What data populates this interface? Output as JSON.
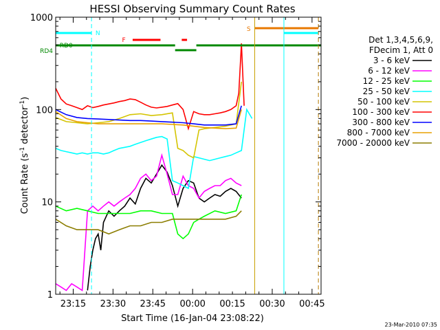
{
  "chart_data": {
    "type": "line",
    "title": "HESSI Observing Summary Count Rates",
    "xlabel": "Start Time (16-Jan-04 23:08:22)",
    "ylabel": "Count Rate (s⁻¹ detector⁻¹)",
    "y_scale": "log",
    "ylim": [
      1,
      1000
    ],
    "xlim_minutes_from_start": [
      0,
      100
    ],
    "grid": false,
    "x_ticks": [
      {
        "label": "23:15",
        "minute": 6.6
      },
      {
        "label": "23:30",
        "minute": 21.6
      },
      {
        "label": "23:45",
        "minute": 36.6
      },
      {
        "label": "00:00",
        "minute": 51.6
      },
      {
        "label": "00:15",
        "minute": 66.6
      },
      {
        "label": "00:30",
        "minute": 81.6
      },
      {
        "label": "00:45",
        "minute": 96.6
      }
    ],
    "y_ticks": [
      {
        "label": "1",
        "value": 1
      },
      {
        "label": "10",
        "value": 10
      },
      {
        "label": "100",
        "value": 100
      },
      {
        "label": "1000",
        "value": 1000
      }
    ],
    "legend_header": [
      "Det 1,3,4,5,6,9,",
      "FDecim 1, Att 0"
    ],
    "legend_placement": "right",
    "timestamp": "23-Mar-2010 07:35",
    "flags": {
      "N_label": "N",
      "F_label": "F",
      "S_label": "S",
      "RD0_label": "RD0",
      "RD4_label": "RD4"
    },
    "series": [
      {
        "name": "3 - 6 keV",
        "color": "#000000",
        "x": [
          12,
          13,
          14,
          15,
          16,
          17,
          18,
          20,
          22,
          24,
          26,
          28,
          30,
          32,
          34,
          36,
          38,
          40,
          42,
          44,
          46,
          48,
          50,
          52,
          54,
          56,
          58,
          60,
          62,
          64,
          66,
          68,
          70
        ],
        "y": [
          1.1,
          2,
          3,
          4,
          4.5,
          3,
          6,
          8,
          7,
          8,
          9,
          11,
          9.5,
          14,
          18,
          16,
          20,
          25,
          21,
          15,
          9,
          14,
          17,
          16,
          11,
          10,
          11,
          12,
          11.5,
          13,
          14,
          13,
          11
        ]
      },
      {
        "name": "6 - 12 keV",
        "color": "#ff00ff",
        "x": [
          0,
          2,
          4,
          6,
          8,
          10,
          12,
          14,
          16,
          18,
          20,
          22,
          24,
          26,
          28,
          30,
          32,
          34,
          36,
          38,
          40,
          42,
          44,
          46,
          48,
          50,
          52,
          54,
          56,
          58,
          60,
          62,
          64,
          66,
          68,
          70
        ],
        "y": [
          1.3,
          1.2,
          1.1,
          1.3,
          1.2,
          1.1,
          8,
          9,
          8,
          9,
          10,
          9,
          10,
          11,
          12,
          14,
          18,
          20,
          17,
          19,
          32,
          20,
          12,
          12,
          19,
          15,
          14,
          11,
          13,
          14,
          15,
          15,
          17,
          18,
          16,
          15
        ]
      },
      {
        "name": "12 - 25 keV",
        "color": "#00ff00",
        "x": [
          0,
          4,
          8,
          12,
          16,
          20,
          24,
          28,
          32,
          36,
          40,
          44,
          46,
          48,
          50,
          52,
          54,
          56,
          60,
          64,
          68,
          70
        ],
        "y": [
          9,
          8,
          8.5,
          8,
          7.5,
          7.5,
          7.5,
          7.5,
          8,
          8,
          7.5,
          7.5,
          4.5,
          4,
          4.5,
          6,
          6.5,
          7,
          8,
          7.5,
          8,
          12
        ]
      },
      {
        "name": "25 - 50 keV",
        "color": "#00ffff",
        "x": [
          0,
          2,
          4,
          6,
          8,
          10,
          12,
          14,
          16,
          18,
          20,
          22,
          24,
          26,
          28,
          30,
          32,
          34,
          36,
          38,
          40,
          42,
          44,
          46,
          48,
          50,
          52,
          54,
          56,
          58,
          60,
          62,
          64,
          66,
          68,
          70,
          72,
          74
        ],
        "y": [
          38,
          36,
          35,
          34,
          33,
          34,
          33,
          34,
          34,
          33,
          34,
          36,
          38,
          39,
          40,
          42,
          44,
          46,
          48,
          50,
          51,
          48,
          17,
          16,
          15,
          14,
          31,
          30,
          29,
          28,
          29,
          30,
          31,
          32,
          34,
          36,
          100,
          80
        ]
      },
      {
        "name": "50 - 100 keV",
        "color": "#d4c400",
        "x": [
          0,
          4,
          8,
          12,
          16,
          20,
          24,
          28,
          32,
          36,
          40,
          44,
          46,
          48,
          50,
          52,
          54,
          56,
          60,
          64,
          68,
          70
        ],
        "y": [
          82,
          74,
          72,
          70,
          72,
          74,
          80,
          88,
          90,
          86,
          88,
          92,
          38,
          36,
          32,
          30,
          60,
          62,
          64,
          66,
          70,
          200
        ]
      },
      {
        "name": "100 - 300 keV",
        "color": "#ff0000",
        "x": [
          0,
          2,
          4,
          6,
          8,
          10,
          12,
          14,
          16,
          18,
          20,
          22,
          24,
          26,
          28,
          30,
          32,
          34,
          36,
          38,
          40,
          42,
          44,
          46,
          48,
          50,
          52,
          54,
          56,
          58,
          60,
          62,
          64,
          66,
          68,
          69,
          70,
          71
        ],
        "y": [
          170,
          130,
          115,
          110,
          105,
          100,
          110,
          105,
          108,
          112,
          115,
          118,
          122,
          125,
          130,
          128,
          120,
          112,
          106,
          104,
          106,
          108,
          112,
          116,
          100,
          62,
          95,
          90,
          88,
          88,
          90,
          92,
          95,
          100,
          110,
          150,
          520,
          110
        ]
      },
      {
        "name": "300 - 800 keV",
        "color": "#0000ff",
        "x": [
          0,
          4,
          8,
          12,
          16,
          20,
          24,
          28,
          32,
          36,
          40,
          44,
          48,
          52,
          56,
          60,
          64,
          68,
          70
        ],
        "y": [
          100,
          88,
          82,
          80,
          79,
          78,
          77,
          76,
          76,
          75,
          74,
          73,
          72,
          70,
          68,
          68,
          68,
          70,
          110
        ]
      },
      {
        "name": "800 - 7000 keV",
        "color": "#e8a000",
        "x": [
          0,
          4,
          8,
          12,
          16,
          20,
          24,
          28,
          32,
          36,
          40,
          44,
          48,
          52,
          56,
          60,
          64,
          68,
          70
        ],
        "y": [
          95,
          80,
          74,
          72,
          70,
          70,
          70,
          70,
          70,
          70,
          70,
          69,
          68,
          66,
          64,
          63,
          62,
          63,
          100
        ]
      },
      {
        "name": "7000 - 20000 keV",
        "color": "#8b7d00",
        "x": [
          0,
          4,
          8,
          12,
          16,
          20,
          24,
          28,
          32,
          36,
          40,
          44,
          48,
          52,
          56,
          60,
          64,
          68,
          70
        ],
        "y": [
          6.5,
          5.5,
          5,
          5,
          5,
          4.5,
          5,
          5.5,
          5.5,
          6,
          6,
          6.5,
          6.5,
          6.5,
          6.5,
          6.5,
          6.5,
          7,
          8
        ]
      }
    ]
  }
}
